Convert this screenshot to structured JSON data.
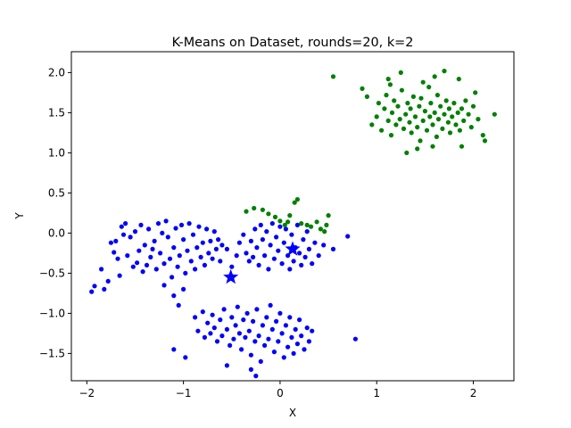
{
  "chart_data": {
    "type": "scatter",
    "title": "K-Means on Dataset, rounds=20, k=2",
    "xlabel": "X",
    "ylabel": "Y",
    "xlim": [
      -2.16,
      2.42
    ],
    "ylim": [
      -1.84,
      2.26
    ],
    "xticks": [
      -2,
      -1,
      0,
      1,
      2
    ],
    "yticks": [
      -1.5,
      -1.0,
      -0.5,
      0.0,
      0.5,
      1.0,
      1.5,
      2.0
    ],
    "xtick_labels": [
      "−2",
      "−1",
      "0",
      "1",
      "2"
    ],
    "ytick_labels": [
      "−1.5",
      "−1.0",
      "−0.5",
      "0.0",
      "0.5",
      "1.0",
      "1.5",
      "2.0"
    ],
    "grid": false,
    "legend": "none",
    "colors": {
      "cluster_1": "#0000ff",
      "cluster_2": "#008000"
    },
    "series": [
      {
        "points": [
          [
            -1.95,
            -0.73
          ],
          [
            -1.92,
            -0.66
          ],
          [
            -1.85,
            -0.45
          ],
          [
            -1.82,
            -0.7
          ],
          [
            -1.78,
            -0.6
          ],
          [
            -1.75,
            -0.12
          ],
          [
            -1.72,
            -0.24
          ],
          [
            -1.7,
            -0.1
          ],
          [
            -1.68,
            -0.32
          ],
          [
            -1.66,
            -0.53
          ],
          [
            -1.64,
            0.08
          ],
          [
            -1.62,
            -0.02
          ],
          [
            -1.6,
            0.12
          ],
          [
            -1.58,
            -0.28
          ],
          [
            -1.55,
            -0.05
          ],
          [
            -1.52,
            -0.42
          ],
          [
            -1.5,
            0.02
          ],
          [
            -1.48,
            -0.37
          ],
          [
            -1.46,
            -0.22
          ],
          [
            -1.44,
            0.1
          ],
          [
            -1.42,
            -0.48
          ],
          [
            -1.4,
            -0.15
          ],
          [
            -1.38,
            -0.4
          ],
          [
            -1.36,
            0.05
          ],
          [
            -1.34,
            -0.3
          ],
          [
            -1.32,
            -0.2
          ],
          [
            -1.3,
            -0.1
          ],
          [
            -1.28,
            -0.45
          ],
          [
            -1.26,
            0.12
          ],
          [
            -1.24,
            -0.25
          ],
          [
            -1.22,
            0.0
          ],
          [
            -1.2,
            -0.38
          ],
          [
            -1.18,
            0.15
          ],
          [
            -1.16,
            -0.05
          ],
          [
            -1.14,
            -0.32
          ],
          [
            -1.12,
            -0.55
          ],
          [
            -1.1,
            -0.18
          ],
          [
            -1.08,
            0.06
          ],
          [
            -1.06,
            -0.42
          ],
          [
            -1.04,
            -0.28
          ],
          [
            -1.02,
            0.1
          ],
          [
            -1.0,
            -0.08
          ],
          [
            -0.98,
            -0.5
          ],
          [
            -0.96,
            -0.22
          ],
          [
            -0.94,
            0.12
          ],
          [
            -0.92,
            -0.35
          ],
          [
            -0.9,
            -0.02
          ],
          [
            -0.88,
            -0.45
          ],
          [
            -0.86,
            -0.18
          ],
          [
            -0.84,
            0.08
          ],
          [
            -0.82,
            -0.3
          ],
          [
            -0.8,
            -0.12
          ],
          [
            -0.78,
            -0.4
          ],
          [
            -0.76,
            0.05
          ],
          [
            -0.74,
            -0.25
          ],
          [
            -0.72,
            -0.1
          ],
          [
            -0.7,
            -0.32
          ],
          [
            -0.68,
            0.02
          ],
          [
            -0.66,
            -0.2
          ],
          [
            -0.64,
            -0.08
          ],
          [
            -0.62,
            -0.35
          ],
          [
            -0.6,
            -0.15
          ],
          [
            -0.55,
            -0.2
          ],
          [
            -0.5,
            -0.42
          ],
          [
            -0.45,
            -0.28
          ],
          [
            -0.42,
            -0.12
          ],
          [
            -0.38,
            -0.02
          ],
          [
            -0.35,
            -0.25
          ],
          [
            -0.32,
            -0.35
          ],
          [
            -0.3,
            -0.1
          ],
          [
            -0.28,
            -0.3
          ],
          [
            -0.26,
            0.05
          ],
          [
            -0.24,
            -0.18
          ],
          [
            -0.22,
            -0.4
          ],
          [
            -0.2,
            0.1
          ],
          [
            -0.18,
            -0.08
          ],
          [
            -0.16,
            -0.28
          ],
          [
            -0.14,
            0.02
          ],
          [
            -0.12,
            -0.45
          ],
          [
            -0.1,
            -0.15
          ],
          [
            -0.08,
            0.12
          ],
          [
            -0.06,
            -0.32
          ],
          [
            -0.04,
            -0.05
          ],
          [
            -0.02,
            -0.22
          ],
          [
            0.0,
            0.08
          ],
          [
            0.02,
            -0.38
          ],
          [
            0.04,
            -0.12
          ],
          [
            0.06,
            0.05
          ],
          [
            0.08,
            -0.28
          ],
          [
            0.1,
            -0.45
          ],
          [
            0.12,
            -0.02
          ],
          [
            0.14,
            -0.35
          ],
          [
            0.16,
            -0.18
          ],
          [
            0.18,
            0.1
          ],
          [
            0.2,
            -0.25
          ],
          [
            0.22,
            -0.4
          ],
          [
            0.24,
            -0.08
          ],
          [
            0.26,
            -0.3
          ],
          [
            0.28,
            0.02
          ],
          [
            0.3,
            -0.2
          ],
          [
            0.33,
            -0.38
          ],
          [
            0.36,
            -0.12
          ],
          [
            0.4,
            -0.28
          ],
          [
            0.45,
            -0.15
          ],
          [
            0.55,
            -0.2
          ],
          [
            0.7,
            -0.04
          ],
          [
            -1.2,
            -0.65
          ],
          [
            -1.1,
            -0.78
          ],
          [
            -1.05,
            -0.9
          ],
          [
            -1.0,
            -0.7
          ],
          [
            -0.88,
            -1.05
          ],
          [
            -0.85,
            -1.22
          ],
          [
            -0.8,
            -0.98
          ],
          [
            -0.78,
            -1.3
          ],
          [
            -0.75,
            -1.12
          ],
          [
            -0.72,
            -1.25
          ],
          [
            -0.7,
            -1.02
          ],
          [
            -0.68,
            -1.18
          ],
          [
            -0.65,
            -1.35
          ],
          [
            -0.62,
            -1.08
          ],
          [
            -0.6,
            -1.28
          ],
          [
            -0.58,
            -0.95
          ],
          [
            -0.55,
            -1.2
          ],
          [
            -0.52,
            -1.4
          ],
          [
            -0.5,
            -1.05
          ],
          [
            -0.48,
            -1.32
          ],
          [
            -0.46,
            -1.15
          ],
          [
            -0.44,
            -0.92
          ],
          [
            -0.42,
            -1.25
          ],
          [
            -0.4,
            -1.45
          ],
          [
            -0.38,
            -1.08
          ],
          [
            -0.36,
            -1.3
          ],
          [
            -0.34,
            -1.0
          ],
          [
            -0.32,
            -1.22
          ],
          [
            -0.3,
            -1.52
          ],
          [
            -0.28,
            -1.1
          ],
          [
            -0.26,
            -1.35
          ],
          [
            -0.24,
            -0.95
          ],
          [
            -0.22,
            -1.28
          ],
          [
            -0.2,
            -1.6
          ],
          [
            -0.18,
            -1.15
          ],
          [
            -0.16,
            -1.4
          ],
          [
            -0.14,
            -1.05
          ],
          [
            -0.12,
            -1.32
          ],
          [
            -0.1,
            -0.9
          ],
          [
            -0.08,
            -1.2
          ],
          [
            -0.06,
            -1.48
          ],
          [
            -0.04,
            -1.1
          ],
          [
            -0.02,
            -1.35
          ],
          [
            0.0,
            -1.0
          ],
          [
            0.02,
            -1.25
          ],
          [
            0.04,
            -1.55
          ],
          [
            0.06,
            -1.15
          ],
          [
            0.08,
            -1.42
          ],
          [
            0.1,
            -1.05
          ],
          [
            0.12,
            -1.3
          ],
          [
            0.14,
            -1.5
          ],
          [
            0.16,
            -1.2
          ],
          [
            0.18,
            -1.38
          ],
          [
            0.2,
            -1.08
          ],
          [
            0.22,
            -1.28
          ],
          [
            0.25,
            -1.45
          ],
          [
            0.28,
            -1.18
          ],
          [
            0.3,
            -1.35
          ],
          [
            0.33,
            -1.22
          ],
          [
            -0.25,
            -1.78
          ],
          [
            -0.3,
            -1.7
          ],
          [
            -1.1,
            -1.45
          ],
          [
            -0.98,
            -1.55
          ],
          [
            -0.55,
            -1.65
          ],
          [
            0.78,
            -1.32
          ]
        ]
      },
      {
        "points": [
          [
            -0.35,
            0.27
          ],
          [
            -0.27,
            0.31
          ],
          [
            -0.18,
            0.29
          ],
          [
            -0.12,
            0.24
          ],
          [
            -0.05,
            0.2
          ],
          [
            0.0,
            0.15
          ],
          [
            0.05,
            0.1
          ],
          [
            0.08,
            0.14
          ],
          [
            0.1,
            0.22
          ],
          [
            0.15,
            0.38
          ],
          [
            0.18,
            0.42
          ],
          [
            0.22,
            0.12
          ],
          [
            0.28,
            0.1
          ],
          [
            0.32,
            0.08
          ],
          [
            0.38,
            0.14
          ],
          [
            0.42,
            0.05
          ],
          [
            0.46,
            0.02
          ],
          [
            0.48,
            0.1
          ],
          [
            0.5,
            0.22
          ],
          [
            0.55,
            1.95
          ],
          [
            0.85,
            1.8
          ],
          [
            0.9,
            1.7
          ],
          [
            0.95,
            1.35
          ],
          [
            1.0,
            1.45
          ],
          [
            1.02,
            1.62
          ],
          [
            1.05,
            1.28
          ],
          [
            1.08,
            1.55
          ],
          [
            1.1,
            1.72
          ],
          [
            1.12,
            1.4
          ],
          [
            1.14,
            1.85
          ],
          [
            1.15,
            1.22
          ],
          [
            1.16,
            1.5
          ],
          [
            1.18,
            1.65
          ],
          [
            1.2,
            1.35
          ],
          [
            1.22,
            1.58
          ],
          [
            1.24,
            1.42
          ],
          [
            1.26,
            1.78
          ],
          [
            1.28,
            1.3
          ],
          [
            1.3,
            1.48
          ],
          [
            1.31,
            1.0
          ],
          [
            1.32,
            1.62
          ],
          [
            1.34,
            1.38
          ],
          [
            1.35,
            1.55
          ],
          [
            1.36,
            1.25
          ],
          [
            1.38,
            1.7
          ],
          [
            1.4,
            1.45
          ],
          [
            1.42,
            1.32
          ],
          [
            1.44,
            1.58
          ],
          [
            1.45,
            1.15
          ],
          [
            1.46,
            1.68
          ],
          [
            1.48,
            1.4
          ],
          [
            1.5,
            1.52
          ],
          [
            1.52,
            1.28
          ],
          [
            1.54,
            1.82
          ],
          [
            1.55,
            1.45
          ],
          [
            1.56,
            1.62
          ],
          [
            1.58,
            1.35
          ],
          [
            1.6,
            1.5
          ],
          [
            1.62,
            1.2
          ],
          [
            1.63,
            1.72
          ],
          [
            1.64,
            1.42
          ],
          [
            1.66,
            1.58
          ],
          [
            1.68,
            1.3
          ],
          [
            1.7,
            1.48
          ],
          [
            1.72,
            1.65
          ],
          [
            1.74,
            1.38
          ],
          [
            1.75,
            1.55
          ],
          [
            1.76,
            1.25
          ],
          [
            1.78,
            1.45
          ],
          [
            1.8,
            1.62
          ],
          [
            1.82,
            1.35
          ],
          [
            1.84,
            1.5
          ],
          [
            1.85,
            1.92
          ],
          [
            1.86,
            1.28
          ],
          [
            1.88,
            1.55
          ],
          [
            1.9,
            1.4
          ],
          [
            1.92,
            1.65
          ],
          [
            1.95,
            1.48
          ],
          [
            1.98,
            1.32
          ],
          [
            2.0,
            1.58
          ],
          [
            2.02,
            1.75
          ],
          [
            2.05,
            1.42
          ],
          [
            2.1,
            1.22
          ],
          [
            2.12,
            1.15
          ],
          [
            2.22,
            1.48
          ],
          [
            1.42,
            1.05
          ],
          [
            1.58,
            1.08
          ],
          [
            1.6,
            1.95
          ],
          [
            1.25,
            2.0
          ],
          [
            1.7,
            2.02
          ],
          [
            1.88,
            1.08
          ],
          [
            1.12,
            1.92
          ],
          [
            1.48,
            1.88
          ]
        ]
      }
    ],
    "centroids": [
      {
        "x": -0.51,
        "y": -0.55
      },
      {
        "x": 0.13,
        "y": -0.2
      }
    ]
  }
}
